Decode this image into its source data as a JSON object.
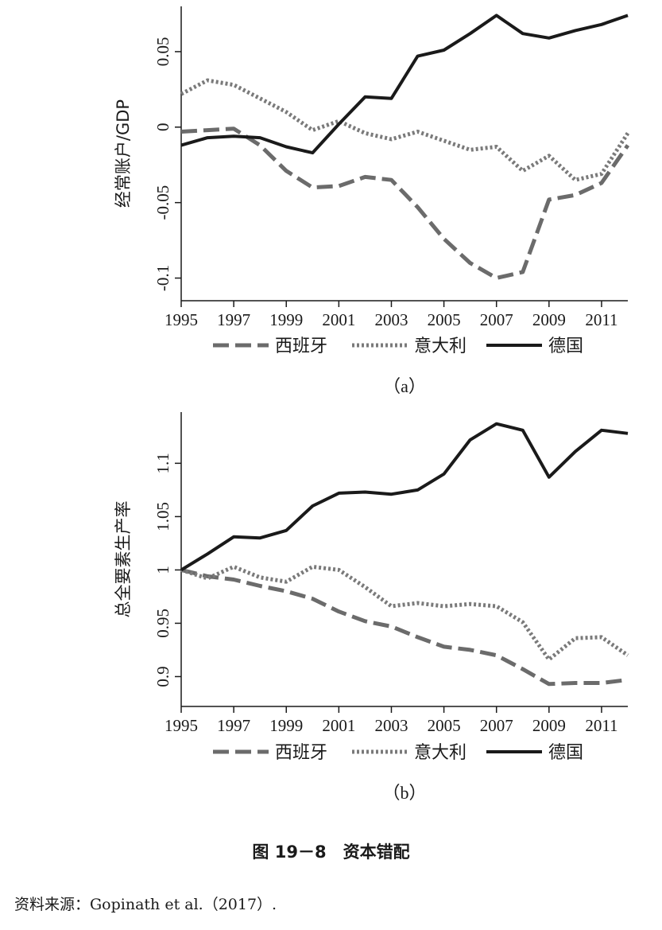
{
  "chart_data": [
    {
      "type": "line",
      "panel_label": "（a）",
      "ylabel": "经常账户/GDP",
      "xlim": [
        1995,
        2012
      ],
      "ylim": [
        -0.115,
        0.08
      ],
      "xticks": [
        1995,
        1997,
        1999,
        2001,
        2003,
        2005,
        2007,
        2009,
        2011
      ],
      "xtick_labels": [
        "1995",
        "1997",
        "1999",
        "2001",
        "2003",
        "2005",
        "2007",
        "2009",
        "2011"
      ],
      "yticks": [
        -0.1,
        -0.05,
        0,
        0.05
      ],
      "ytick_labels": [
        "-0.1",
        "-0.05",
        "0",
        "0.05"
      ],
      "x": [
        1995,
        1996,
        1997,
        1998,
        1999,
        2000,
        2001,
        2002,
        2003,
        2004,
        2005,
        2006,
        2007,
        2008,
        2009,
        2010,
        2011,
        2012
      ],
      "series": [
        {
          "name": "西班牙",
          "style": "dashed",
          "color": "#6b6b6b",
          "values": [
            -0.003,
            -0.002,
            -0.001,
            -0.012,
            -0.029,
            -0.04,
            -0.039,
            -0.033,
            -0.035,
            -0.053,
            -0.074,
            -0.09,
            -0.1,
            -0.096,
            -0.048,
            -0.045,
            -0.037,
            -0.012
          ]
        },
        {
          "name": "意大利",
          "style": "dotted",
          "color": "#7a7a7a",
          "values": [
            0.022,
            0.031,
            0.028,
            0.019,
            0.01,
            -0.002,
            0.004,
            -0.004,
            -0.008,
            -0.003,
            -0.009,
            -0.015,
            -0.013,
            -0.029,
            -0.019,
            -0.035,
            -0.031,
            -0.004
          ]
        },
        {
          "name": "德国",
          "style": "solid",
          "color": "#1a1a1a",
          "values": [
            -0.012,
            -0.007,
            -0.006,
            -0.007,
            -0.013,
            -0.017,
            0.002,
            0.02,
            0.019,
            0.047,
            0.051,
            0.062,
            0.074,
            0.062,
            0.059,
            0.064,
            0.068,
            0.074
          ]
        }
      ]
    },
    {
      "type": "line",
      "panel_label": "（b）",
      "ylabel": "总全要素生产率",
      "xlim": [
        1995,
        2012
      ],
      "ylim": [
        0.872,
        1.148
      ],
      "xticks": [
        1995,
        1997,
        1999,
        2001,
        2003,
        2005,
        2007,
        2009,
        2011
      ],
      "xtick_labels": [
        "1995",
        "1997",
        "1999",
        "2001",
        "2003",
        "2005",
        "2007",
        "2009",
        "2011"
      ],
      "yticks": [
        0.9,
        0.95,
        1,
        1.05,
        1.1
      ],
      "ytick_labels": [
        "0.9",
        "0.95",
        "1",
        "1.05",
        "1.1"
      ],
      "x": [
        1995,
        1996,
        1997,
        1998,
        1999,
        2000,
        2001,
        2002,
        2003,
        2004,
        2005,
        2006,
        2007,
        2008,
        2009,
        2010,
        2011,
        2012
      ],
      "series": [
        {
          "name": "西班牙",
          "style": "dashed",
          "color": "#6b6b6b",
          "values": [
            1.0,
            0.994,
            0.991,
            0.985,
            0.98,
            0.973,
            0.961,
            0.952,
            0.947,
            0.937,
            0.928,
            0.925,
            0.92,
            0.907,
            0.893,
            0.894,
            0.894,
            0.897
          ]
        },
        {
          "name": "意大利",
          "style": "dotted",
          "color": "#7a7a7a",
          "values": [
            1.0,
            0.992,
            1.003,
            0.993,
            0.989,
            1.003,
            1.0,
            0.984,
            0.966,
            0.969,
            0.966,
            0.968,
            0.966,
            0.951,
            0.916,
            0.936,
            0.937,
            0.92
          ]
        },
        {
          "name": "德国",
          "style": "solid",
          "color": "#1a1a1a",
          "values": [
            1.0,
            1.015,
            1.031,
            1.03,
            1.037,
            1.06,
            1.072,
            1.073,
            1.071,
            1.075,
            1.09,
            1.122,
            1.137,
            1.131,
            1.087,
            1.111,
            1.131,
            1.128
          ]
        }
      ]
    }
  ],
  "figure_title": "图 19－8　资本错配",
  "source_note": "资料来源：Gopinath et al.（2017）."
}
